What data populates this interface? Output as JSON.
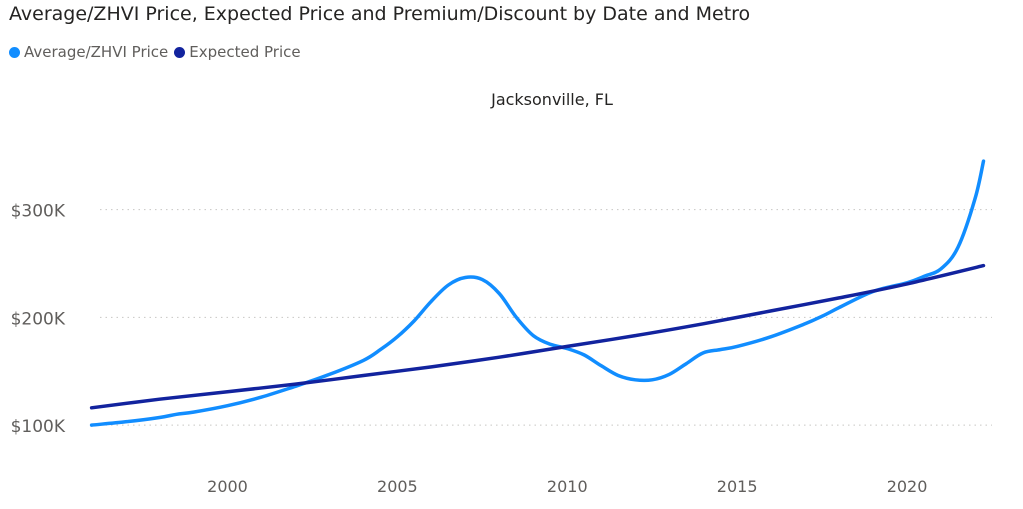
{
  "chart_data": {
    "type": "line",
    "title": "Average/ZHVI Price, Expected Price and Premium/Discount by Date and Metro",
    "panel_title": "Jacksonville, FL",
    "x_ticks": [
      2000,
      2005,
      2010,
      2015,
      2020
    ],
    "y_ticks": [
      {
        "value": 100000,
        "label": "$100K"
      },
      {
        "value": 200000,
        "label": "$200K"
      },
      {
        "value": 300000,
        "label": "$300K"
      }
    ],
    "xlim": [
      1995.6,
      2022.5
    ],
    "ylim": [
      75000,
      385000
    ],
    "grid": true,
    "legend_placement": "top-left",
    "series": [
      {
        "name": "Average/ZHVI Price",
        "color": "#118DFF",
        "points": [
          [
            1996.0,
            100000
          ],
          [
            1997.0,
            103000
          ],
          [
            1998.0,
            107000
          ],
          [
            1998.5,
            110000
          ],
          [
            1999.0,
            112000
          ],
          [
            2000.0,
            118000
          ],
          [
            2001.0,
            126000
          ],
          [
            2002.0,
            136000
          ],
          [
            2003.0,
            147000
          ],
          [
            2004.0,
            160000
          ],
          [
            2004.5,
            170000
          ],
          [
            2005.0,
            182000
          ],
          [
            2005.5,
            197000
          ],
          [
            2006.0,
            215000
          ],
          [
            2006.5,
            230000
          ],
          [
            2007.0,
            237000
          ],
          [
            2007.5,
            235000
          ],
          [
            2008.0,
            222000
          ],
          [
            2008.5,
            200000
          ],
          [
            2009.0,
            183000
          ],
          [
            2009.5,
            175000
          ],
          [
            2010.0,
            171000
          ],
          [
            2010.5,
            165000
          ],
          [
            2011.0,
            155000
          ],
          [
            2011.5,
            146000
          ],
          [
            2012.0,
            142000
          ],
          [
            2012.5,
            142000
          ],
          [
            2013.0,
            147000
          ],
          [
            2013.5,
            157000
          ],
          [
            2014.0,
            167000
          ],
          [
            2014.5,
            170000
          ],
          [
            2015.0,
            173000
          ],
          [
            2016.0,
            182000
          ],
          [
            2017.0,
            194000
          ],
          [
            2017.5,
            201000
          ],
          [
            2018.0,
            209000
          ],
          [
            2019.0,
            224000
          ],
          [
            2020.0,
            232000
          ],
          [
            2020.5,
            238000
          ],
          [
            2021.0,
            245000
          ],
          [
            2021.5,
            265000
          ],
          [
            2022.0,
            310000
          ],
          [
            2022.25,
            345000
          ]
        ]
      },
      {
        "name": "Expected Price",
        "color": "#12239E",
        "points": [
          [
            1996.0,
            116000
          ],
          [
            1998.0,
            124000
          ],
          [
            2000.0,
            131000
          ],
          [
            2002.0,
            138000
          ],
          [
            2004.0,
            146000
          ],
          [
            2006.0,
            154000
          ],
          [
            2008.0,
            163000
          ],
          [
            2010.0,
            173000
          ],
          [
            2012.0,
            183000
          ],
          [
            2014.0,
            194000
          ],
          [
            2016.0,
            206000
          ],
          [
            2018.0,
            218000
          ],
          [
            2020.0,
            231000
          ],
          [
            2022.25,
            248000
          ]
        ]
      }
    ]
  }
}
